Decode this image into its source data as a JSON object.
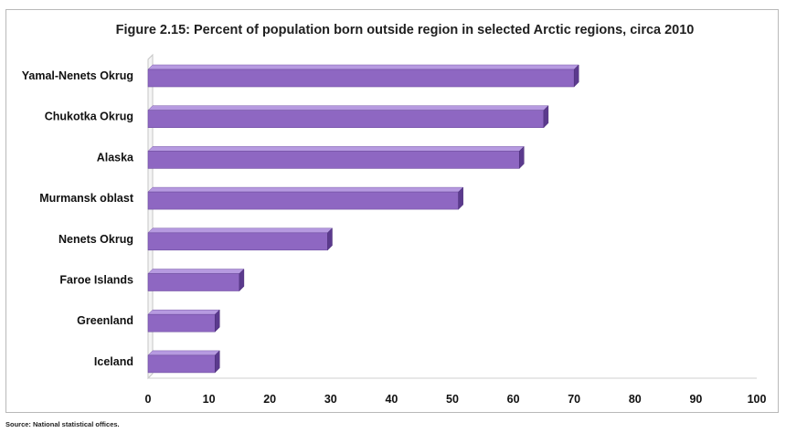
{
  "chart_data": {
    "type": "bar",
    "orientation": "horizontal",
    "title": "Figure 2.15: Percent of population born outside region in selected Arctic regions, circa 2010",
    "categories": [
      "Yamal-Nenets Okrug",
      "Chukotka Okrug",
      "Alaska",
      "Murmansk oblast",
      "Nenets Okrug",
      "Faroe Islands",
      "Greenland",
      "Iceland"
    ],
    "values": [
      70,
      65,
      61,
      51,
      29.5,
      15,
      11,
      11
    ],
    "xlim": [
      0,
      100
    ],
    "xticks": [
      0,
      10,
      20,
      30,
      40,
      50,
      60,
      70,
      80,
      90,
      100
    ],
    "bar_color": "#8e67c2",
    "bar_top_color": "#b69ae0",
    "bar_side_color": "#5b3a8d",
    "grid": false,
    "legend": "none"
  },
  "source": "Source: National statistical offices."
}
